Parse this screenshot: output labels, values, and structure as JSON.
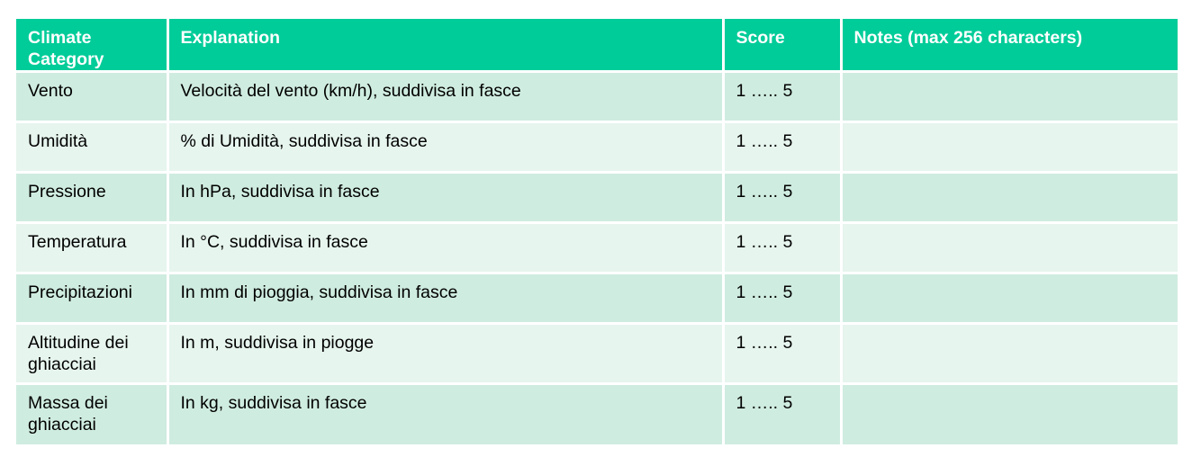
{
  "table": {
    "headers": [
      "Climate Category",
      "Explanation",
      "Score",
      "Notes (max 256 characters)"
    ],
    "rows": [
      [
        "Vento",
        "Velocità del vento (km/h), suddivisa in fasce",
        "1 ….. 5",
        ""
      ],
      [
        "Umidità",
        "% di Umidità, suddivisa in fasce",
        "1 ….. 5",
        ""
      ],
      [
        "Pressione",
        "In hPa, suddivisa in fasce",
        "1 ….. 5",
        ""
      ],
      [
        "Temperatura",
        "In °C, suddivisa in fasce",
        "1 ….. 5",
        ""
      ],
      [
        "Precipitazioni",
        "In mm di pioggia, suddivisa in fasce",
        "1 ….. 5",
        ""
      ],
      [
        "Altitudine dei ghiacciai",
        "In m, suddivisa in piogge",
        "1 ….. 5",
        ""
      ],
      [
        "Massa dei ghiacciai",
        "In kg, suddivisa in fasce",
        "1 ….. 5",
        ""
      ]
    ]
  },
  "colors": {
    "header_bg": "#00cc99",
    "header_text": "#ffffff",
    "row_odd_bg": "#cfece0",
    "row_even_bg": "#e6f5ee"
  }
}
